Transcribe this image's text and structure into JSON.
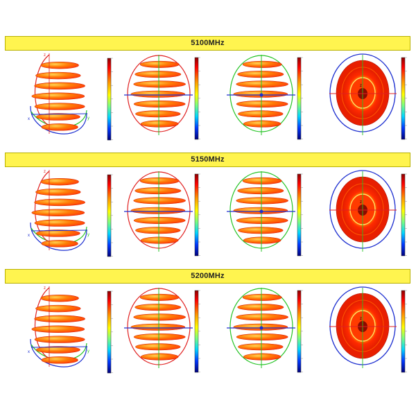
{
  "rows": [
    {
      "frequency_label": "5100MHz"
    },
    {
      "frequency_label": "5150MHz"
    },
    {
      "frequency_label": "5200MHz"
    }
  ],
  "axis_letters": {
    "x": "x",
    "y": "y",
    "z": "z"
  },
  "colors": {
    "banner_fill": "#fff44f",
    "pattern_hot": "#ff2a00",
    "pattern_mid": "#ff7a00",
    "pattern_highlight": "#ffd24d",
    "axis_red": "#e02020",
    "axis_green": "#24c324",
    "axis_blue": "#1d2fd0",
    "colorbar_top": "#8b0000",
    "colorbar_bottom": "#00007a"
  }
}
